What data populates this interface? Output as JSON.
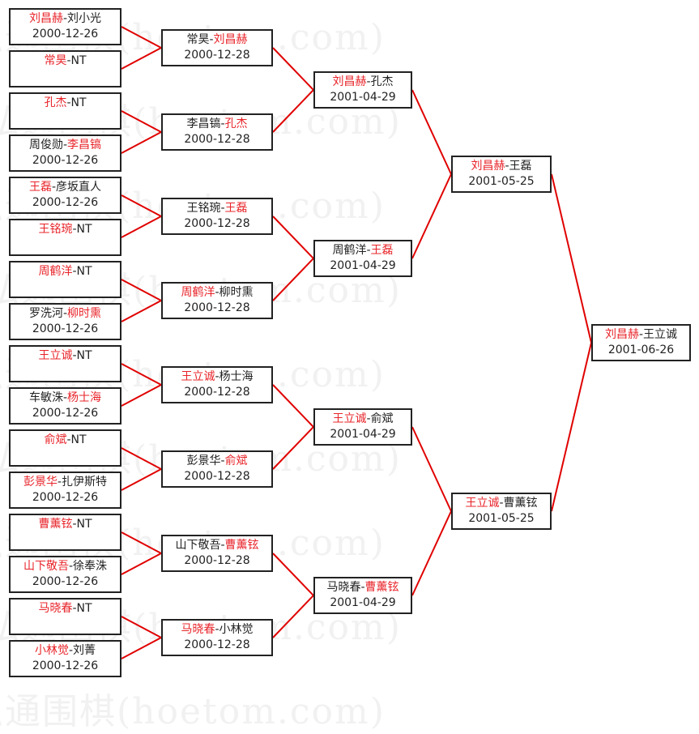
{
  "watermark": "弘通围棋(hoetom.com)",
  "colors": {
    "winner": "#e8242a",
    "line": "#e00000",
    "text": "#222222"
  },
  "separator": "-",
  "rounds": [
    {
      "matches": [
        {
          "p1": "刘昌赫",
          "p2": "刘小光",
          "winner": 1,
          "date": "2000-12-26"
        },
        {
          "p1": "常昊",
          "p2": "NT",
          "winner": 1,
          "date": ""
        },
        {
          "p1": "孔杰",
          "p2": "NT",
          "winner": 1,
          "date": ""
        },
        {
          "p1": "周俊勋",
          "p2": "李昌镐",
          "winner": 2,
          "date": "2000-12-26"
        },
        {
          "p1": "王磊",
          "p2": "彦坂直人",
          "winner": 1,
          "date": "2000-12-26"
        },
        {
          "p1": "王铭琬",
          "p2": "NT",
          "winner": 1,
          "date": ""
        },
        {
          "p1": "周鹤洋",
          "p2": "NT",
          "winner": 1,
          "date": ""
        },
        {
          "p1": "罗洗河",
          "p2": "柳时熏",
          "winner": 2,
          "date": "2000-12-26"
        },
        {
          "p1": "王立诚",
          "p2": "NT",
          "winner": 1,
          "date": ""
        },
        {
          "p1": "车敏洙",
          "p2": "杨士海",
          "winner": 2,
          "date": "2000-12-26"
        },
        {
          "p1": "俞斌",
          "p2": "NT",
          "winner": 1,
          "date": ""
        },
        {
          "p1": "彭景华",
          "p2": "扎伊斯特",
          "winner": 1,
          "date": "2000-12-26"
        },
        {
          "p1": "曹薰铉",
          "p2": "NT",
          "winner": 1,
          "date": ""
        },
        {
          "p1": "山下敬吾",
          "p2": "徐奉洙",
          "winner": 1,
          "date": "2000-12-26"
        },
        {
          "p1": "马晓春",
          "p2": "NT",
          "winner": 1,
          "date": ""
        },
        {
          "p1": "小林觉",
          "p2": "刘菁",
          "winner": 1,
          "date": "2000-12-26"
        }
      ]
    },
    {
      "matches": [
        {
          "p1": "常昊",
          "p2": "刘昌赫",
          "winner": 2,
          "date": "2000-12-28"
        },
        {
          "p1": "李昌镐",
          "p2": "孔杰",
          "winner": 2,
          "date": "2000-12-28"
        },
        {
          "p1": "王铭琬",
          "p2": "王磊",
          "winner": 2,
          "date": "2000-12-28"
        },
        {
          "p1": "周鹤洋",
          "p2": "柳时熏",
          "winner": 1,
          "date": "2000-12-28"
        },
        {
          "p1": "王立诚",
          "p2": "杨士海",
          "winner": 1,
          "date": "2000-12-28"
        },
        {
          "p1": "彭景华",
          "p2": "俞斌",
          "winner": 2,
          "date": "2000-12-28"
        },
        {
          "p1": "山下敬吾",
          "p2": "曹薰铉",
          "winner": 2,
          "date": "2000-12-28"
        },
        {
          "p1": "马晓春",
          "p2": "小林觉",
          "winner": 1,
          "date": "2000-12-28"
        }
      ]
    },
    {
      "matches": [
        {
          "p1": "刘昌赫",
          "p2": "孔杰",
          "winner": 1,
          "date": "2001-04-29"
        },
        {
          "p1": "周鹤洋",
          "p2": "王磊",
          "winner": 2,
          "date": "2001-04-29"
        },
        {
          "p1": "王立诚",
          "p2": "俞斌",
          "winner": 1,
          "date": "2001-04-29"
        },
        {
          "p1": "马晓春",
          "p2": "曹薰铉",
          "winner": 2,
          "date": "2001-04-29"
        }
      ]
    },
    {
      "matches": [
        {
          "p1": "刘昌赫",
          "p2": "王磊",
          "winner": 1,
          "date": "2001-05-25"
        },
        {
          "p1": "王立诚",
          "p2": "曹薰铉",
          "winner": 1,
          "date": "2001-05-25"
        }
      ]
    },
    {
      "matches": [
        {
          "p1": "刘昌赫",
          "p2": "王立诚",
          "winner": 1,
          "date": "2001-06-26"
        }
      ]
    }
  ]
}
